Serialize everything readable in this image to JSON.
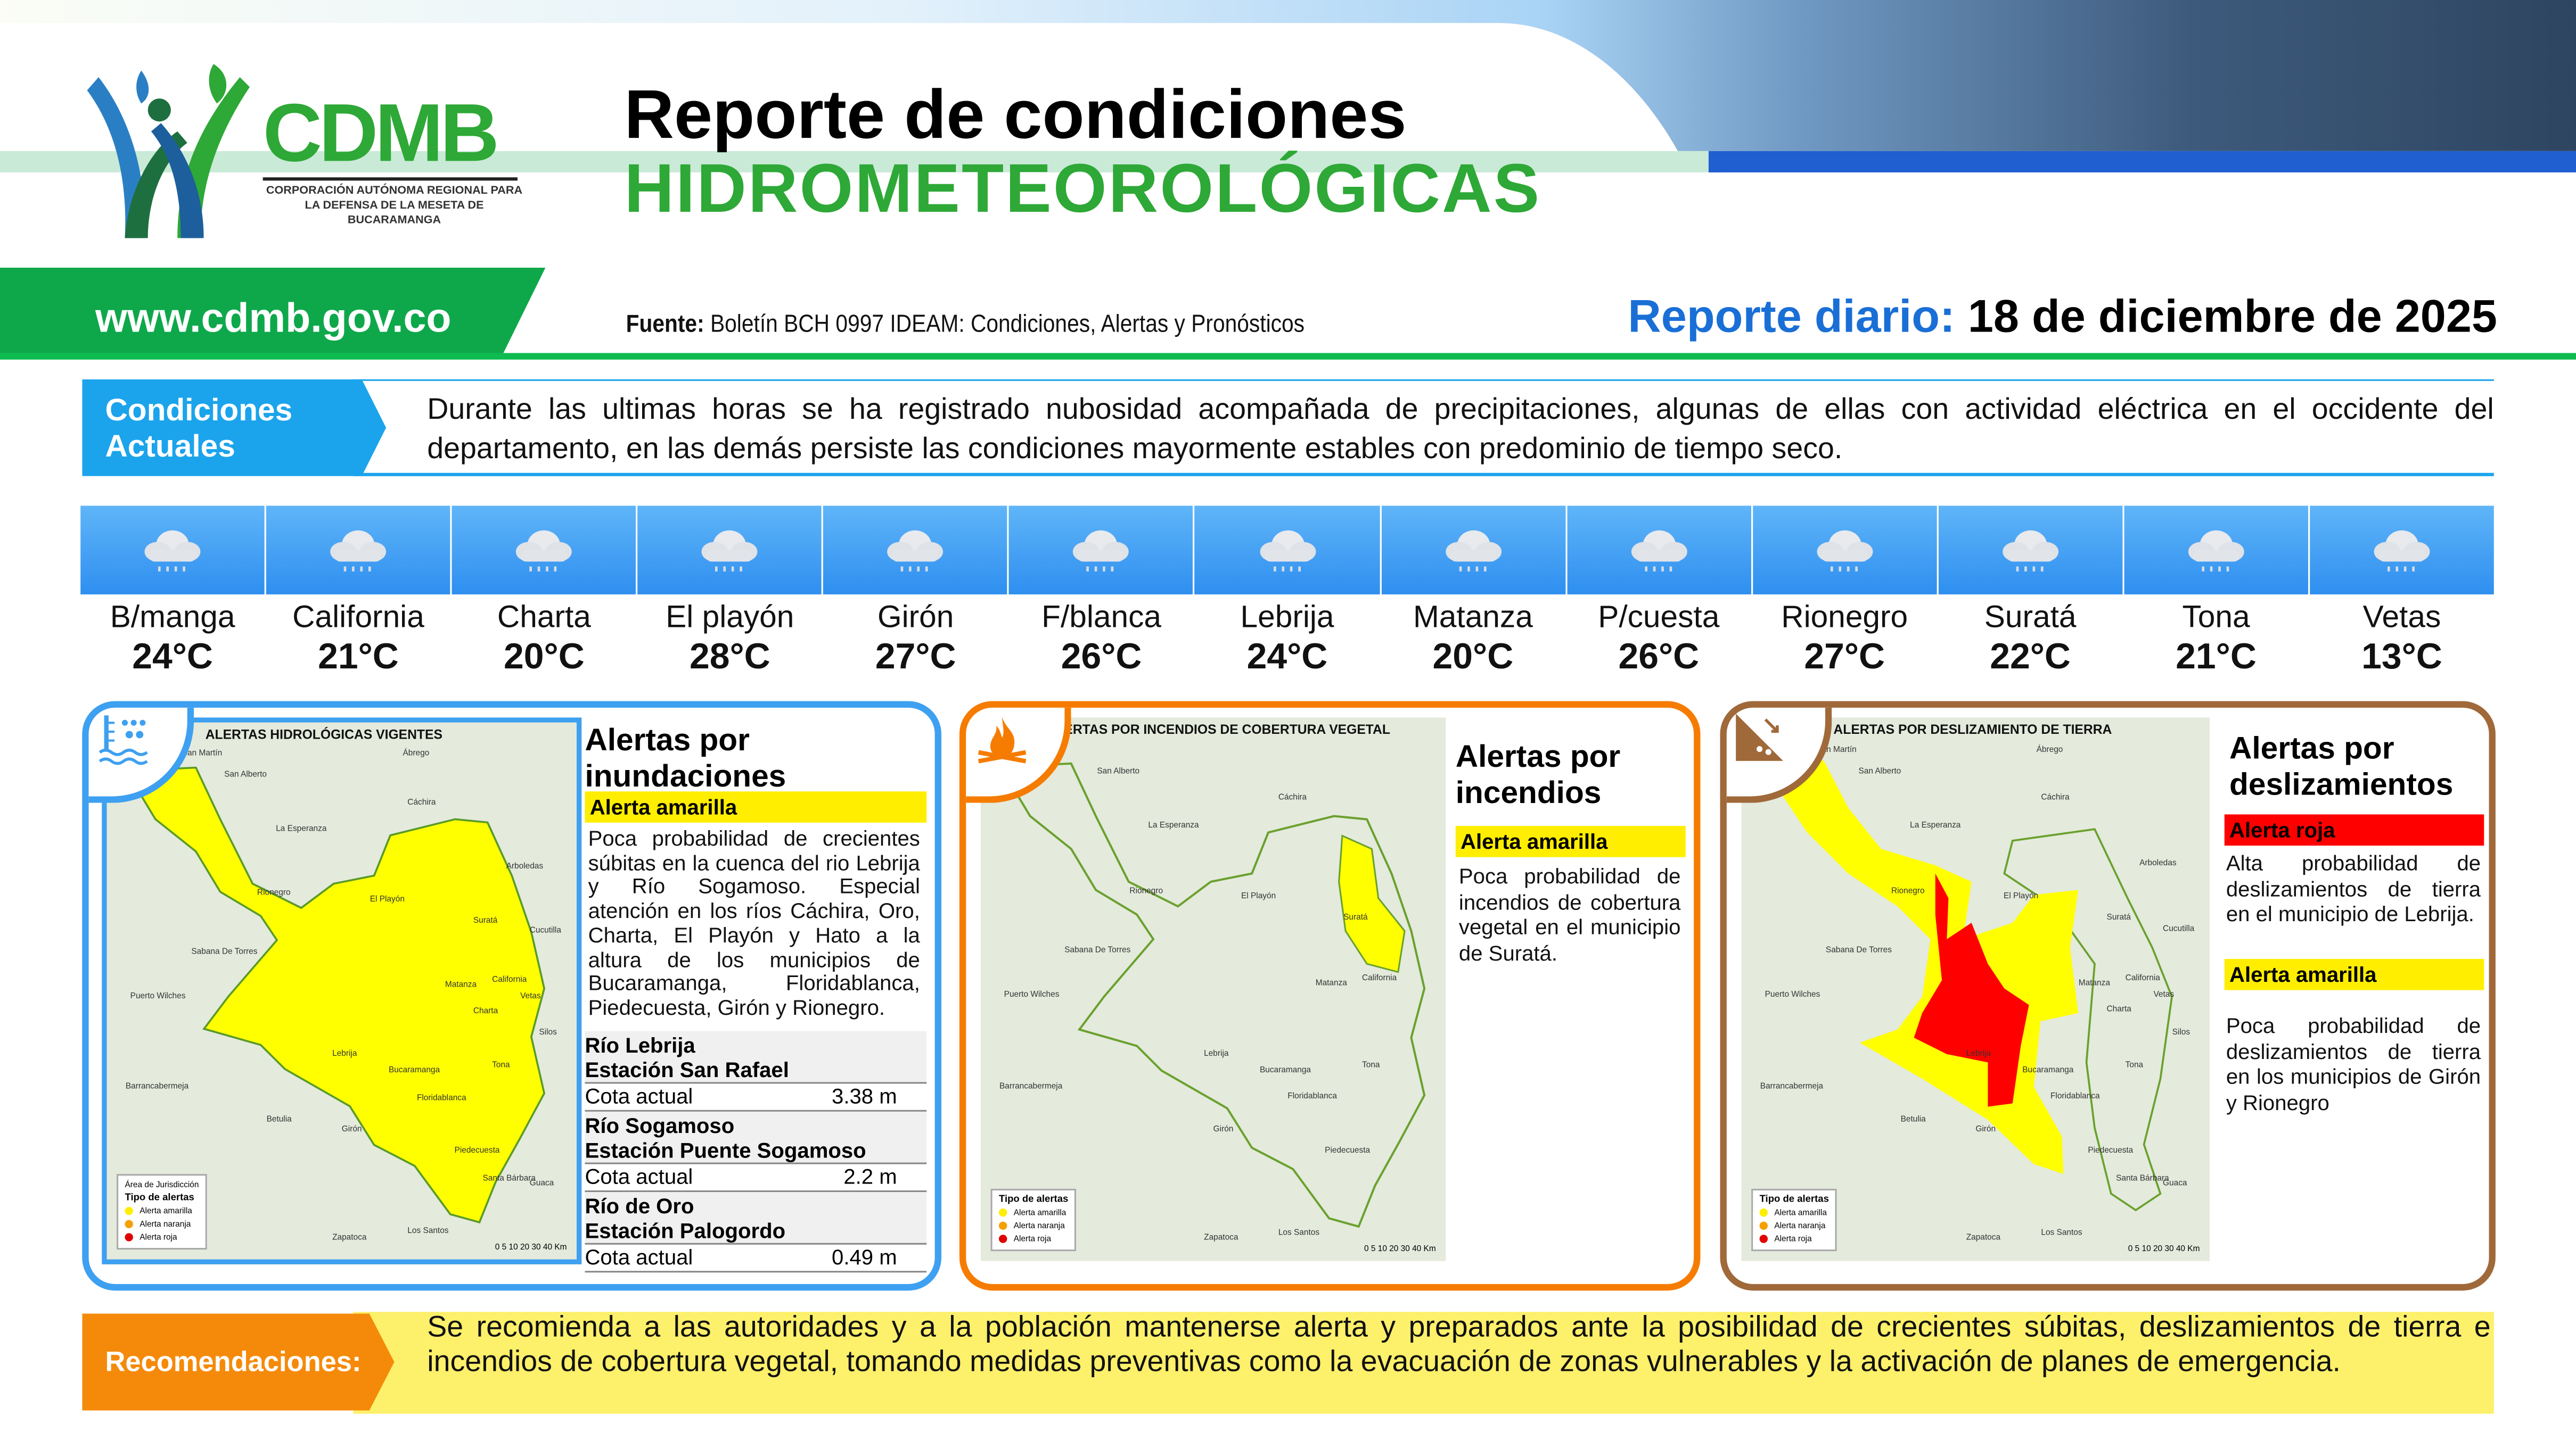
{
  "header": {
    "logo_name": "CDMB",
    "logo_subtitle": "CORPORACIÓN AUTÓNOMA REGIONAL PARA LA DEFENSA DE LA MESETA DE BUCARAMANGA",
    "title_line1": "Reporte de condiciones",
    "title_line2": "HIDROMETEOROLÓGICAS",
    "website": "www.cdmb.gov.co",
    "source_label": "Fuente:",
    "source_text": "Boletín BCH 0997 IDEAM: Condiciones, Alertas y Pronósticos",
    "report_label": "Reporte diario:",
    "report_date": "18 de diciembre de 2025"
  },
  "conditions": {
    "label": "Condiciones Actuales",
    "text": "Durante las ultimas horas se ha registrado nubosidad acompañada de precipitaciones, algunas de ellas con actividad eléctrica en el occidente del departamento, en las demás persiste las condiciones mayormente estables con predominio de tiempo seco."
  },
  "weather": [
    {
      "city": "B/manga",
      "temp": "24°C",
      "icon": "rain-cloud-icon"
    },
    {
      "city": "California",
      "temp": "21°C",
      "icon": "rain-cloud-icon"
    },
    {
      "city": "Charta",
      "temp": "20°C",
      "icon": "rain-cloud-icon"
    },
    {
      "city": "El playón",
      "temp": "28°C",
      "icon": "rain-cloud-icon"
    },
    {
      "city": "Girón",
      "temp": "27°C",
      "icon": "rain-cloud-icon"
    },
    {
      "city": "F/blanca",
      "temp": "26°C",
      "icon": "rain-cloud-icon"
    },
    {
      "city": "Lebrija",
      "temp": "24°C",
      "icon": "rain-cloud-icon"
    },
    {
      "city": "Matanza",
      "temp": "20°C",
      "icon": "rain-cloud-icon"
    },
    {
      "city": "P/cuesta",
      "temp": "26°C",
      "icon": "rain-cloud-icon"
    },
    {
      "city": "Rionegro",
      "temp": "27°C",
      "icon": "rain-cloud-icon"
    },
    {
      "city": "Suratá",
      "temp": "22°C",
      "icon": "rain-cloud-icon"
    },
    {
      "city": "Tona",
      "temp": "21°C",
      "icon": "rain-cloud-icon"
    },
    {
      "city": "Vetas",
      "temp": "13°C",
      "icon": "rain-cloud-icon"
    }
  ],
  "legend": {
    "jurisdiction": "Área de Jurisdicción",
    "title": "Tipo de alertas",
    "yellow": "Alerta amarilla",
    "orange": "Alerta naranja",
    "red": "Alerta roja",
    "scale": "0  5  10     20     30     40 Km"
  },
  "flood": {
    "map_title": "ALERTAS HIDROLÓGICAS VIGENTES",
    "places": [
      "San Martín",
      "San Alberto",
      "Ábrego",
      "Cáchira",
      "La Esperanza",
      "Arboledas",
      "Rionegro",
      "El Playón",
      "Suratá",
      "Cucutilla",
      "Sabana De Torres",
      "Puerto Wilches",
      "Matanza",
      "California",
      "Vetas",
      "Charta",
      "Silos",
      "Lebrija",
      "Tona",
      "Bucaramanga",
      "Barrancabermeja",
      "Floridablanca",
      "Betulia",
      "Girón",
      "Piedecuesta",
      "Santa Bárbara",
      "Guaca",
      "Zapatoca",
      "Los Santos"
    ],
    "title": "Alertas por inundaciones",
    "alert": "Alerta amarilla",
    "text": "Poca probabilidad de crecientes súbitas en la cuenca del rio Lebrija y Río Sogamoso. Especial atención en los ríos Cáchira, Oro, Charta, El Playón y Hato a la altura de los municipios de Bucaramanga, Floridablanca, Piedecuesta, Girón y Rionegro.",
    "stations": [
      {
        "river": "Río Lebrija",
        "station": "Estación San Rafael",
        "label": "Cota actual",
        "value": "3.38 m"
      },
      {
        "river": "Río Sogamoso",
        "station": "Estación Puente Sogamoso",
        "label": "Cota actual",
        "value": "2.2 m"
      },
      {
        "river": "Río de Oro",
        "station": "Estación Palogordo",
        "label": "Cota actual",
        "value": "0.49 m"
      }
    ]
  },
  "fire": {
    "map_title": "ALERTAS POR INCENDIOS DE COBERTURA VEGETAL",
    "places": [
      "San Alberto",
      "La Esperanza",
      "Cáchira",
      "Rionegro",
      "El Playón",
      "Suratá",
      "Sabana De Torres",
      "Puerto Wilches",
      "Matanza",
      "California",
      "Lebrija",
      "Tona",
      "Barrancabermeja",
      "Bucaramanga",
      "Floridablanca",
      "Girón",
      "Piedecuesta",
      "Zapatoca",
      "Los Santos"
    ],
    "title": "Alertas por incendios",
    "alert": "Alerta amarilla",
    "text": "Poca probabilidad de incendios de cobertura vegetal en el municipio de Suratá."
  },
  "landslide": {
    "map_title": "ALERTAS POR DESLIZAMIENTO DE TIERRA",
    "places": [
      "San Martín",
      "San Alberto",
      "Ábrego",
      "Cáchira",
      "La Esperanza",
      "Arboledas",
      "Rionegro",
      "El Playón",
      "Suratá",
      "Cucutilla",
      "Sabana De Torres",
      "Puerto Wilches",
      "Matanza",
      "California",
      "Vetas",
      "Charta",
      "Silos",
      "Lebrija",
      "Tona",
      "Bucaramanga",
      "Barrancabermeja",
      "Floridablanca",
      "Betulia",
      "Girón",
      "Piedecuesta",
      "Santa Bárbara",
      "Guaca",
      "Zapatoca",
      "Los Santos"
    ],
    "title": "Alertas por deslizamientos",
    "alert_red": "Alerta roja",
    "text_red": "Alta probabilidad de deslizamientos de tierra en el municipio de Lebrija.",
    "alert_yellow": "Alerta amarilla",
    "text_yellow": "Poca probabilidad de deslizamientos de tierra en los municipios de Girón y Rionegro"
  },
  "recommendations": {
    "label": "Recomendaciones:",
    "text": "Se recomienda a las autoridades y a la población mantenerse alerta y preparados ante la posibilidad de crecientes súbitas, deslizamientos de tierra e incendios de cobertura vegetal, tomando medidas preventivas como la evacuación de zonas vulnerables y la activación de planes de emergencia."
  },
  "colors": {
    "brand_green": "#2ea836",
    "brand_blue": "#1a6fd6",
    "flood_border": "#3ea0f0",
    "fire_border": "#f57c00",
    "landslide_border": "#a0693a",
    "alert_yellow": "#ffee00",
    "alert_red": "#ff0000"
  }
}
